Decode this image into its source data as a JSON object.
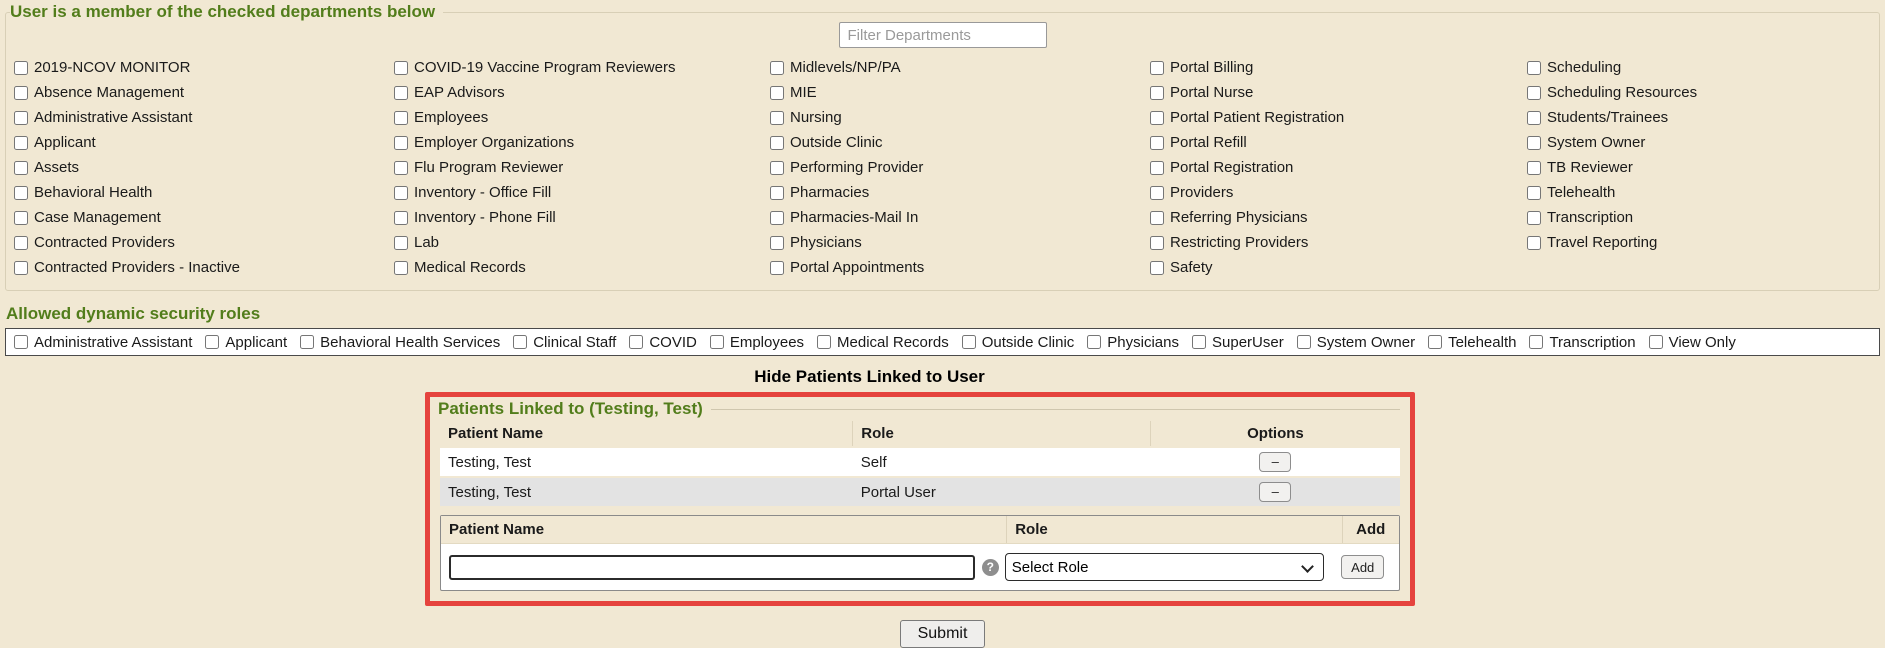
{
  "page": {
    "background": "#f1e8d3",
    "accent_green": "#527d1b",
    "alert_red": "#e5433d",
    "row_alt_gray": "#e3e3e3"
  },
  "departments": {
    "title": "User is a member of the checked departments below",
    "filter_placeholder": "Filter Departments",
    "columns": [
      [
        "2019-NCOV MONITOR",
        "Absence Management",
        "Administrative Assistant",
        "Applicant",
        "Assets",
        "Behavioral Health",
        "Case Management",
        "Contracted Providers",
        "Contracted Providers - Inactive"
      ],
      [
        "COVID-19 Vaccine Program Reviewers",
        "EAP Advisors",
        "Employees",
        "Employer Organizations",
        "Flu Program Reviewer",
        "Inventory - Office Fill",
        "Inventory - Phone Fill",
        "Lab",
        "Medical Records"
      ],
      [
        "Midlevels/NP/PA",
        "MIE",
        "Nursing",
        "Outside Clinic",
        "Performing Provider",
        "Pharmacies",
        "Pharmacies-Mail In",
        "Physicians",
        "Portal Appointments"
      ],
      [
        "Portal Billing",
        "Portal Nurse",
        "Portal Patient Registration",
        "Portal Refill",
        "Portal Registration",
        "Providers",
        "Referring Physicians",
        "Restricting Providers",
        "Safety"
      ],
      [
        "Scheduling",
        "Scheduling Resources",
        "Students/Trainees",
        "System Owner",
        "TB Reviewer",
        "Telehealth",
        "Transcription",
        "Travel Reporting"
      ]
    ]
  },
  "roles": {
    "title": "Allowed dynamic security roles",
    "items": [
      "Administrative Assistant",
      "Applicant",
      "Behavioral Health Services",
      "Clinical Staff",
      "COVID",
      "Employees",
      "Medical Records",
      "Outside Clinic",
      "Physicians",
      "SuperUser",
      "System Owner",
      "Telehealth",
      "Transcription",
      "View Only"
    ]
  },
  "patients": {
    "toggle_label": "Hide Patients Linked to User",
    "title": "Patients Linked to (Testing, Test)",
    "table": {
      "headers": [
        "Patient Name",
        "Role",
        "Options"
      ],
      "remove_label": "–",
      "rows": [
        {
          "name": "Testing, Test",
          "role": "Self"
        },
        {
          "name": "Testing, Test",
          "role": "Portal User"
        }
      ]
    },
    "add": {
      "headers": [
        "Patient Name",
        "Role",
        "Add"
      ],
      "input_value": "",
      "help_icon": "?",
      "role_selected": "Select Role",
      "button_label": "Add"
    }
  },
  "submit_label": "Submit"
}
